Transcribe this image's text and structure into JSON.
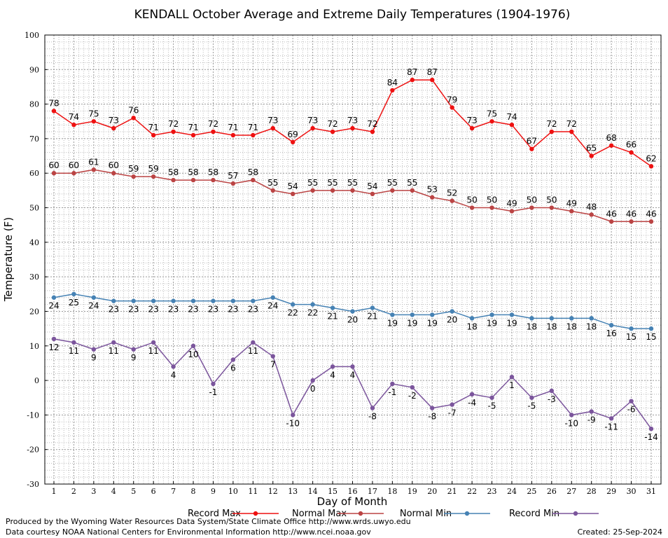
{
  "chart_data": {
    "type": "line",
    "title": "KENDALL October Average and Extreme Daily Temperatures (1904-1976)",
    "xlabel": "Day of Month",
    "ylabel": "Temperature (F)",
    "ylim": [
      -30,
      100
    ],
    "xlim": [
      1,
      31
    ],
    "y_ticks": [
      100,
      90,
      80,
      70,
      60,
      50,
      40,
      30,
      20,
      10,
      0,
      -10,
      -20,
      -30
    ],
    "x": [
      1,
      2,
      3,
      4,
      5,
      6,
      7,
      8,
      9,
      10,
      11,
      12,
      13,
      14,
      15,
      16,
      17,
      18,
      19,
      20,
      21,
      22,
      23,
      24,
      25,
      26,
      27,
      28,
      29,
      30,
      31
    ],
    "grid": true,
    "legend_position": "bottom",
    "series": [
      {
        "name": "Record Max",
        "color": "#ee1111",
        "values": [
          78,
          74,
          75,
          73,
          76,
          71,
          72,
          71,
          72,
          71,
          71,
          73,
          69,
          73,
          72,
          73,
          72,
          84,
          87,
          87,
          79,
          73,
          75,
          74,
          67,
          72,
          72,
          65,
          68,
          66,
          62
        ]
      },
      {
        "name": "Normal Max",
        "color": "#bb4444",
        "values": [
          60,
          60,
          61,
          60,
          59,
          59,
          58,
          58,
          58,
          57,
          58,
          55,
          54,
          55,
          55,
          55,
          54,
          55,
          55,
          53,
          52,
          50,
          50,
          49,
          50,
          50,
          49,
          48,
          46,
          46,
          46
        ]
      },
      {
        "name": "Normal Min",
        "color": "#4682b4",
        "values": [
          24,
          25,
          24,
          23,
          23,
          23,
          23,
          23,
          23,
          23,
          23,
          24,
          22,
          22,
          21,
          20,
          21,
          19,
          19,
          19,
          20,
          18,
          19,
          19,
          18,
          18,
          18,
          18,
          16,
          15,
          15
        ]
      },
      {
        "name": "Record Min",
        "color": "#7b559c",
        "values": [
          12,
          11,
          9,
          11,
          9,
          11,
          4,
          10,
          -1,
          6,
          11,
          7,
          -10,
          0,
          4,
          4,
          -8,
          -1,
          -2,
          -8,
          -7,
          -4,
          -5,
          1,
          -5,
          -3,
          -10,
          -9,
          -11,
          -6,
          -14
        ]
      }
    ]
  },
  "footer": {
    "credit_line_1": "Produced by the Wyoming Water Resources Data System/State Climate Office http://www.wrds.uwyo.edu",
    "credit_line_2": "Data courtesy NOAA National Centers for Environmental Information http://www.ncei.noaa.gov",
    "created": "Created:  25-Sep-2024"
  }
}
